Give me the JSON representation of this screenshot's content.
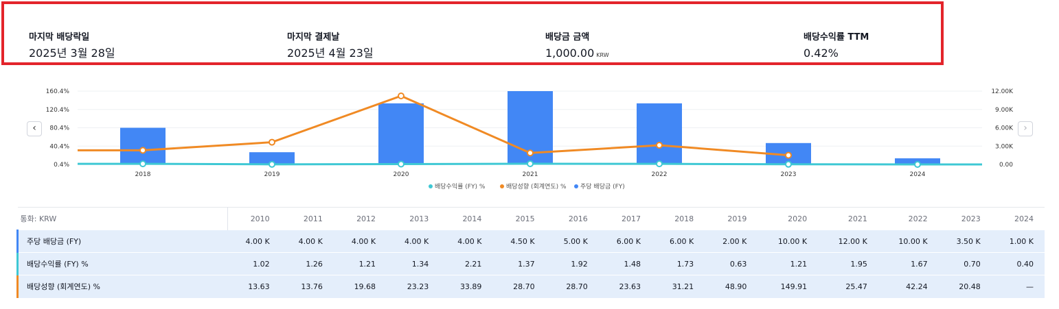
{
  "summary": {
    "items": [
      {
        "label": "마지막 배당락일",
        "value": "2025년 3월 28일",
        "unit": ""
      },
      {
        "label": "마지막 결제날",
        "value": "2025년 4월 23일",
        "unit": ""
      },
      {
        "label": "배당금 금액",
        "value": "1,000.00",
        "unit": "KRW"
      },
      {
        "label": "배당수익률 TTM",
        "value": "0.42%",
        "unit": ""
      }
    ]
  },
  "chart_data": {
    "type": "bar",
    "categories": [
      "2018",
      "2019",
      "2020",
      "2021",
      "2022",
      "2023",
      "2024"
    ],
    "series": [
      {
        "name": "배당수익률 (FY) %",
        "type": "line",
        "axis": "left",
        "color": "#3ec8d4",
        "values": [
          1.73,
          0.63,
          1.21,
          1.95,
          1.67,
          0.7,
          0.4
        ]
      },
      {
        "name": "배당성향 (회계연도) %",
        "type": "line",
        "axis": "left",
        "color": "#f08a24",
        "values": [
          31.21,
          48.9,
          149.91,
          25.47,
          42.24,
          20.48,
          null
        ]
      },
      {
        "name": "주당 배당금 (FY)",
        "type": "bar",
        "axis": "right",
        "color": "#4287f5",
        "values": [
          6000,
          2000,
          10000,
          12000,
          10000,
          3500,
          1000
        ]
      }
    ],
    "left_ticks": [
      "160.4%",
      "120.4%",
      "80.4%",
      "40.4%",
      "0.4%"
    ],
    "left_range": [
      0.4,
      160.4
    ],
    "right_ticks": [
      "12.00K",
      "9.00K",
      "6.00K",
      "3.00K",
      "0.00"
    ],
    "right_range": [
      0,
      12000
    ],
    "legend": "bottom-center"
  },
  "nav": {
    "prev": "‹",
    "next": "›"
  },
  "table": {
    "currency_label": "통화: KRW",
    "years": [
      "2010",
      "2011",
      "2012",
      "2013",
      "2014",
      "2015",
      "2016",
      "2017",
      "2018",
      "2019",
      "2020",
      "2021",
      "2022",
      "2023",
      "2024"
    ],
    "rows": [
      {
        "label": "주당 배당금 (FY)",
        "color": "#4287f5",
        "values": [
          "4.00 K",
          "4.00 K",
          "4.00 K",
          "4.00 K",
          "4.00 K",
          "4.50 K",
          "5.00 K",
          "6.00 K",
          "6.00 K",
          "2.00 K",
          "10.00 K",
          "12.00 K",
          "10.00 K",
          "3.50 K",
          "1.00 K"
        ]
      },
      {
        "label": "배당수익률 (FY) %",
        "color": "#3ec8d4",
        "values": [
          "1.02",
          "1.26",
          "1.21",
          "1.34",
          "2.21",
          "1.37",
          "1.92",
          "1.48",
          "1.73",
          "0.63",
          "1.21",
          "1.95",
          "1.67",
          "0.70",
          "0.40"
        ]
      },
      {
        "label": "배당성향 (회계연도) %",
        "color": "#f08a24",
        "values": [
          "13.63",
          "13.76",
          "19.68",
          "23.23",
          "33.89",
          "28.70",
          "28.70",
          "23.63",
          "31.21",
          "48.90",
          "149.91",
          "25.47",
          "42.24",
          "20.48",
          "—"
        ]
      }
    ]
  }
}
